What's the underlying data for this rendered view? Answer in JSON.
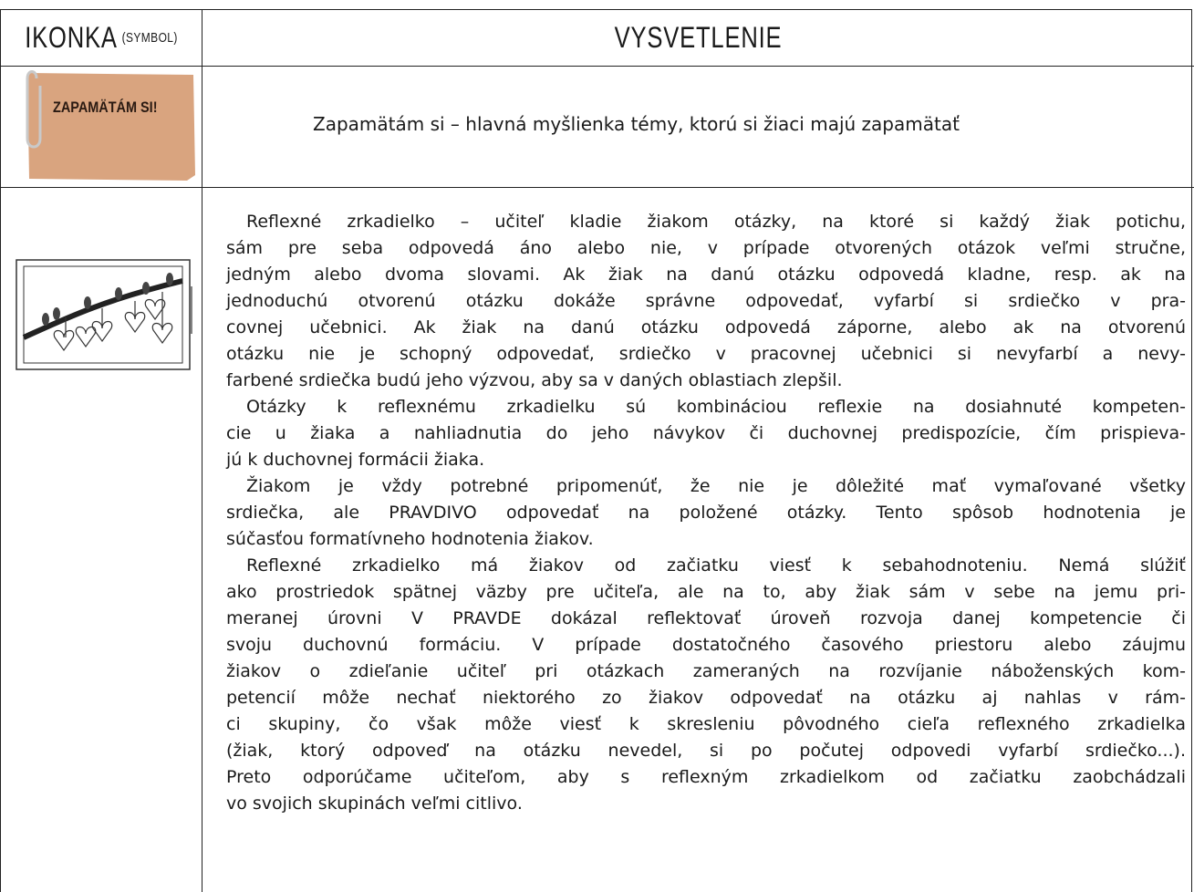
{
  "header": {
    "icon_column": {
      "title": "IKONKA",
      "note": "(SYMBOL)"
    },
    "explanation_column": "VYSVETLENIE"
  },
  "rows": [
    {
      "icon_label": "ZAPAMÄTÁM SI!",
      "explanation": "Zapamätám si – hlavná myšlienka témy, ktorú si žiaci majú zapamätať"
    },
    {
      "explanation_paragraphs": [
        {
          "lines": [
            "Reflexné zrkadielko – učiteľ kladie žiakom otázky, na ktoré si každý žiak potichu,",
            "sám pre seba odpovedá áno alebo nie, v prípade otvorených otázok veľmi stručne,",
            "jedným alebo dvoma slovami. Ak žiak na danú otázku odpovedá kladne, resp. ak na",
            "jednoduchú otvorenú otázku dokáže správne odpovedať, vyfarbí si srdiečko v pra-",
            "covnej učebnici. Ak žiak na danú otázku odpovedá záporne, alebo ak na otvorenú",
            "otázku nie je schopný odpovedať, srdiečko v pracovnej učebnici si nevyfarbí a nevy-",
            "farbené srdiečka budú jeho výzvou, aby sa v daných oblastiach zlepšil."
          ]
        },
        {
          "lines": [
            "Otázky k reflexnému zrkadielku sú kombináciou reflexie na dosiahnuté kompeten-",
            "cie u žiaka a nahliadnutia do jeho návykov či duchovnej predispozície, čím prispieva-",
            "jú k duchovnej formácii žiaka."
          ]
        },
        {
          "lines": [
            "Žiakom je vždy potrebné pripomenúť, že nie je dôležité mať vymaľované všetky",
            "srdiečka, ale PRAVDIVO odpovedať na položené otázky. Tento spôsob hodnotenia je",
            "súčasťou formatívneho hodnotenia žiakov."
          ]
        },
        {
          "lines": [
            "Reflexné zrkadielko má žiakov od začiatku viesť k sebahodnoteniu. Nemá slúžiť",
            "ako prostriedok spätnej väzby pre učiteľa, ale na to, aby žiak sám v sebe na jemu pri-",
            "meranej úrovni V PRAVDE dokázal reflektovať úroveň rozvoja danej kompetencie či",
            "svoju duchovnú formáciu. V prípade dostatočného časového priestoru alebo záujmu",
            "žiakov o zdieľanie učiteľ pri otázkach zameraných na rozvíjanie náboženských kom-",
            "petencií môže nechať niektorého zo žiakov odpovedať na otázku aj nahlas v rám-",
            "ci skupiny, čo však môže viesť k skresleniu pôvodného cieľa reflexného zrkadielka",
            "(žiak, ktorý odpoveď na otázku nevedel, si po počutej odpovedi vyfarbí srdiečko...).",
            "Preto odporúčame učiteľom, aby s reflexným zrkadielkom od začiatku zaobchádzali",
            "vo svojich skupinách veľmi citlivo."
          ]
        }
      ]
    }
  ]
}
